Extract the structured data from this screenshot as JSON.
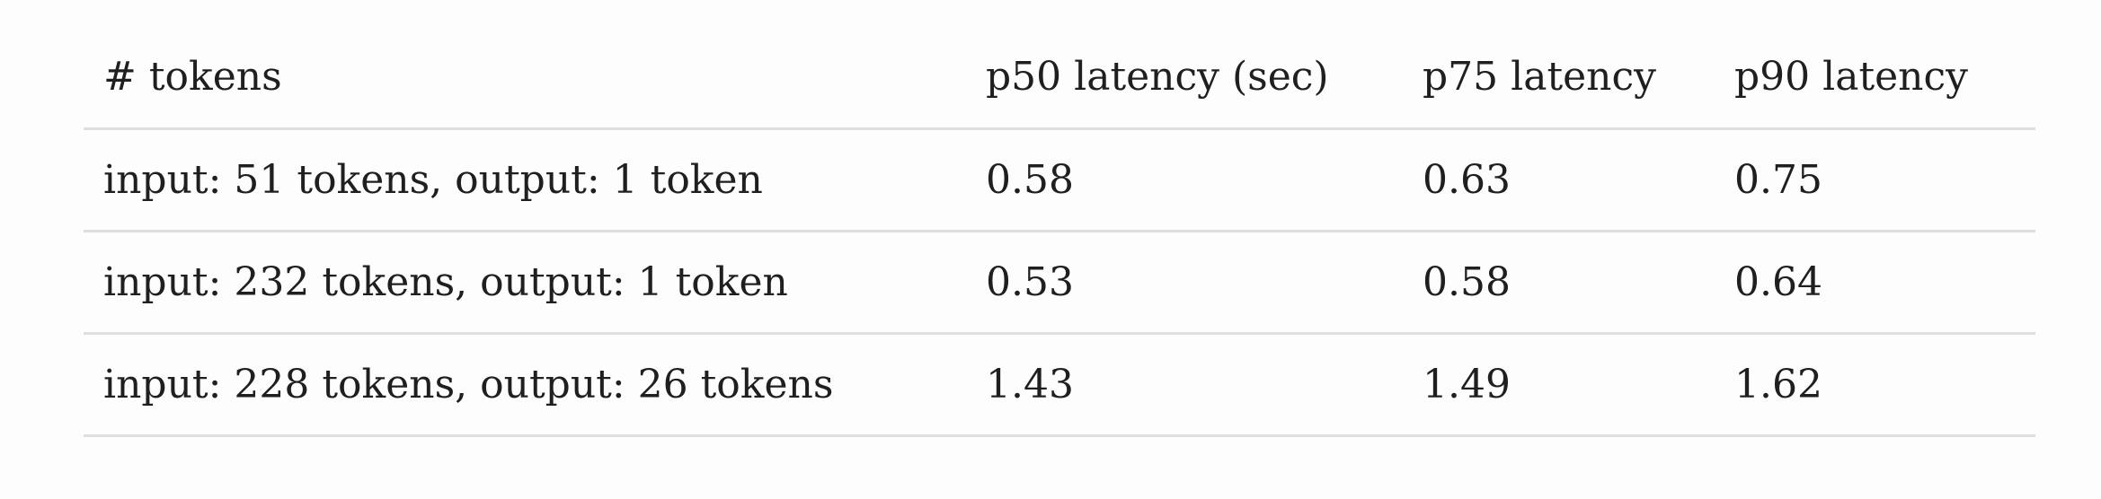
{
  "table": {
    "headers": [
      "# tokens",
      "p50 latency (sec)",
      "p75 latency",
      "p90 latency"
    ],
    "rows": [
      [
        "input: 51 tokens, output: 1 token",
        "0.58",
        "0.63",
        "0.75"
      ],
      [
        "input: 232 tokens, output: 1 token",
        "0.53",
        "0.58",
        "0.64"
      ],
      [
        "input: 228 tokens, output: 26 tokens",
        "1.43",
        "1.49",
        "1.62"
      ]
    ]
  }
}
